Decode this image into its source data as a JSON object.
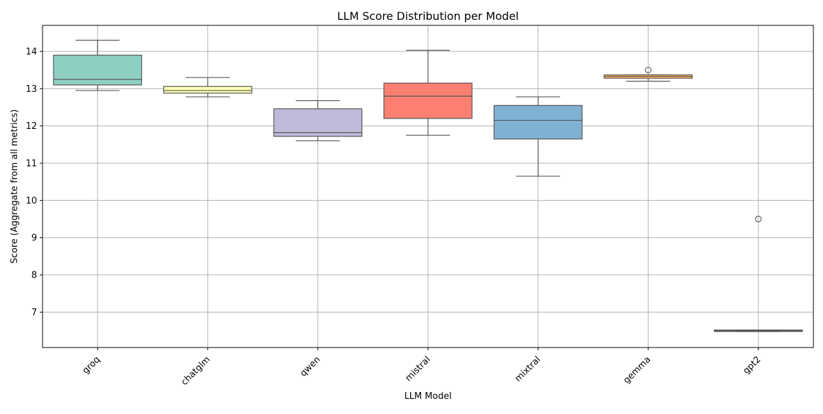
{
  "chart_data": {
    "type": "box",
    "title": "LLM Score Distribution per Model",
    "xlabel": "LLM Model",
    "ylabel": "Score (Aggregate from all metrics)",
    "ylim": [
      6.05,
      14.7
    ],
    "yticks": [
      7,
      8,
      9,
      10,
      11,
      12,
      13,
      14
    ],
    "grid": true,
    "categories": [
      "groq",
      "chatglm",
      "qwen",
      "mistral",
      "mixtral",
      "gemma",
      "gpt2"
    ],
    "series": [
      {
        "name": "groq",
        "color": "#8ecfc3",
        "whisker_low": 12.95,
        "q1": 13.1,
        "median": 13.25,
        "q3": 13.9,
        "whisker_high": 14.3,
        "outliers": []
      },
      {
        "name": "chatglm",
        "color": "#ffffb3",
        "whisker_low": 12.78,
        "q1": 12.88,
        "median": 12.95,
        "q3": 13.06,
        "whisker_high": 13.3,
        "outliers": []
      },
      {
        "name": "qwen",
        "color": "#bebada",
        "whisker_low": 11.6,
        "q1": 11.72,
        "median": 11.82,
        "q3": 12.46,
        "whisker_high": 12.68,
        "outliers": []
      },
      {
        "name": "mistral",
        "color": "#fb8072",
        "whisker_low": 11.75,
        "q1": 12.2,
        "median": 12.8,
        "q3": 13.15,
        "whisker_high": 14.03,
        "outliers": []
      },
      {
        "name": "mixtral",
        "color": "#80b1d3",
        "whisker_low": 10.65,
        "q1": 11.65,
        "median": 12.15,
        "q3": 12.55,
        "whisker_high": 12.78,
        "outliers": []
      },
      {
        "name": "gemma",
        "color": "#fdb462",
        "whisker_low": 13.2,
        "q1": 13.28,
        "median": 13.33,
        "q3": 13.37,
        "whisker_high": 13.37,
        "outliers": [
          13.5
        ]
      },
      {
        "name": "gpt2",
        "color": "#b3de69",
        "whisker_low": 6.48,
        "q1": 6.48,
        "median": 6.5,
        "q3": 6.52,
        "whisker_high": 6.52,
        "outliers": [
          9.5
        ]
      }
    ]
  }
}
